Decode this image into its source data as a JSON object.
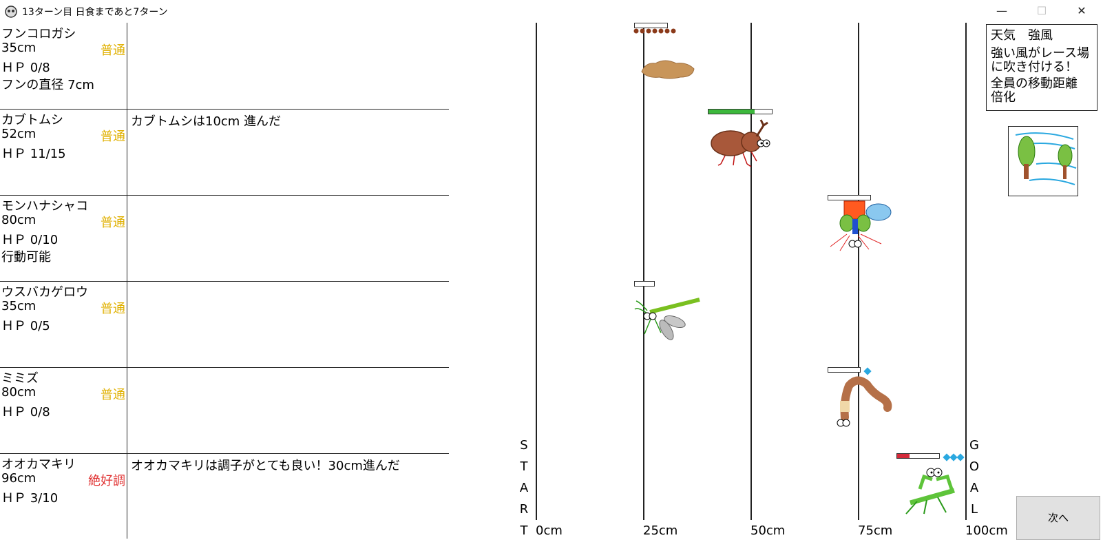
{
  "window": {
    "title": "13ターン目 日食まであと7ターン",
    "minimize": "—",
    "maximize": "☐",
    "close": "✕"
  },
  "racers": [
    {
      "name": "フンコロガシ",
      "position": "35cm",
      "condition": "普通",
      "condition_color": "#e0b000",
      "hp": "ＨＰ 0/8",
      "extra": "フンの直径 7cm",
      "log": "",
      "hp_ratio": 0
    },
    {
      "name": "カブトムシ",
      "position": "52cm",
      "condition": "普通",
      "condition_color": "#e0b000",
      "hp": "ＨＰ 11/15",
      "extra": "",
      "log": "カブトムシは10cm 進んだ",
      "hp_ratio": 0.73
    },
    {
      "name": "モンハナシャコ",
      "position": "80cm",
      "condition": "普通",
      "condition_color": "#e0b000",
      "hp": "ＨＰ 0/10",
      "extra": "行動可能",
      "log": "",
      "hp_ratio": 0
    },
    {
      "name": "ウスバカゲロウ",
      "position": "35cm",
      "condition": "普通",
      "condition_color": "#e0b000",
      "hp": "ＨＰ 0/5",
      "extra": "",
      "log": "",
      "hp_ratio": 0
    },
    {
      "name": "ミミズ",
      "position": "80cm",
      "condition": "普通",
      "condition_color": "#e0b000",
      "hp": "ＨＰ 0/8",
      "extra": "",
      "log": "",
      "hp_ratio": 0
    },
    {
      "name": "オオカマキリ",
      "position": "96cm",
      "condition": "絶好調",
      "condition_color": "#e03030",
      "hp": "ＨＰ 3/10",
      "extra": "",
      "log": "オオカマキリは調子がとても良い！30cm進んだ",
      "hp_ratio": 0.3
    }
  ],
  "track": {
    "ticks": [
      "0cm",
      "25cm",
      "50cm",
      "75cm",
      "100cm"
    ],
    "start_letters": [
      "S",
      "T",
      "A",
      "R",
      "T"
    ],
    "goal_letters": [
      "G",
      "O",
      "A",
      "L"
    ]
  },
  "weather": {
    "line1": "天気　強風",
    "line2": "強い風がレース場",
    "line3": "に吹き付ける！",
    "line4": "全員の移動距離",
    "line5": "倍化"
  },
  "next_button": "次へ",
  "colors": {
    "hp_green": "#3cb83c",
    "hp_red": "#d42a3a",
    "normal": "#e0b000",
    "excellent": "#e03030"
  }
}
